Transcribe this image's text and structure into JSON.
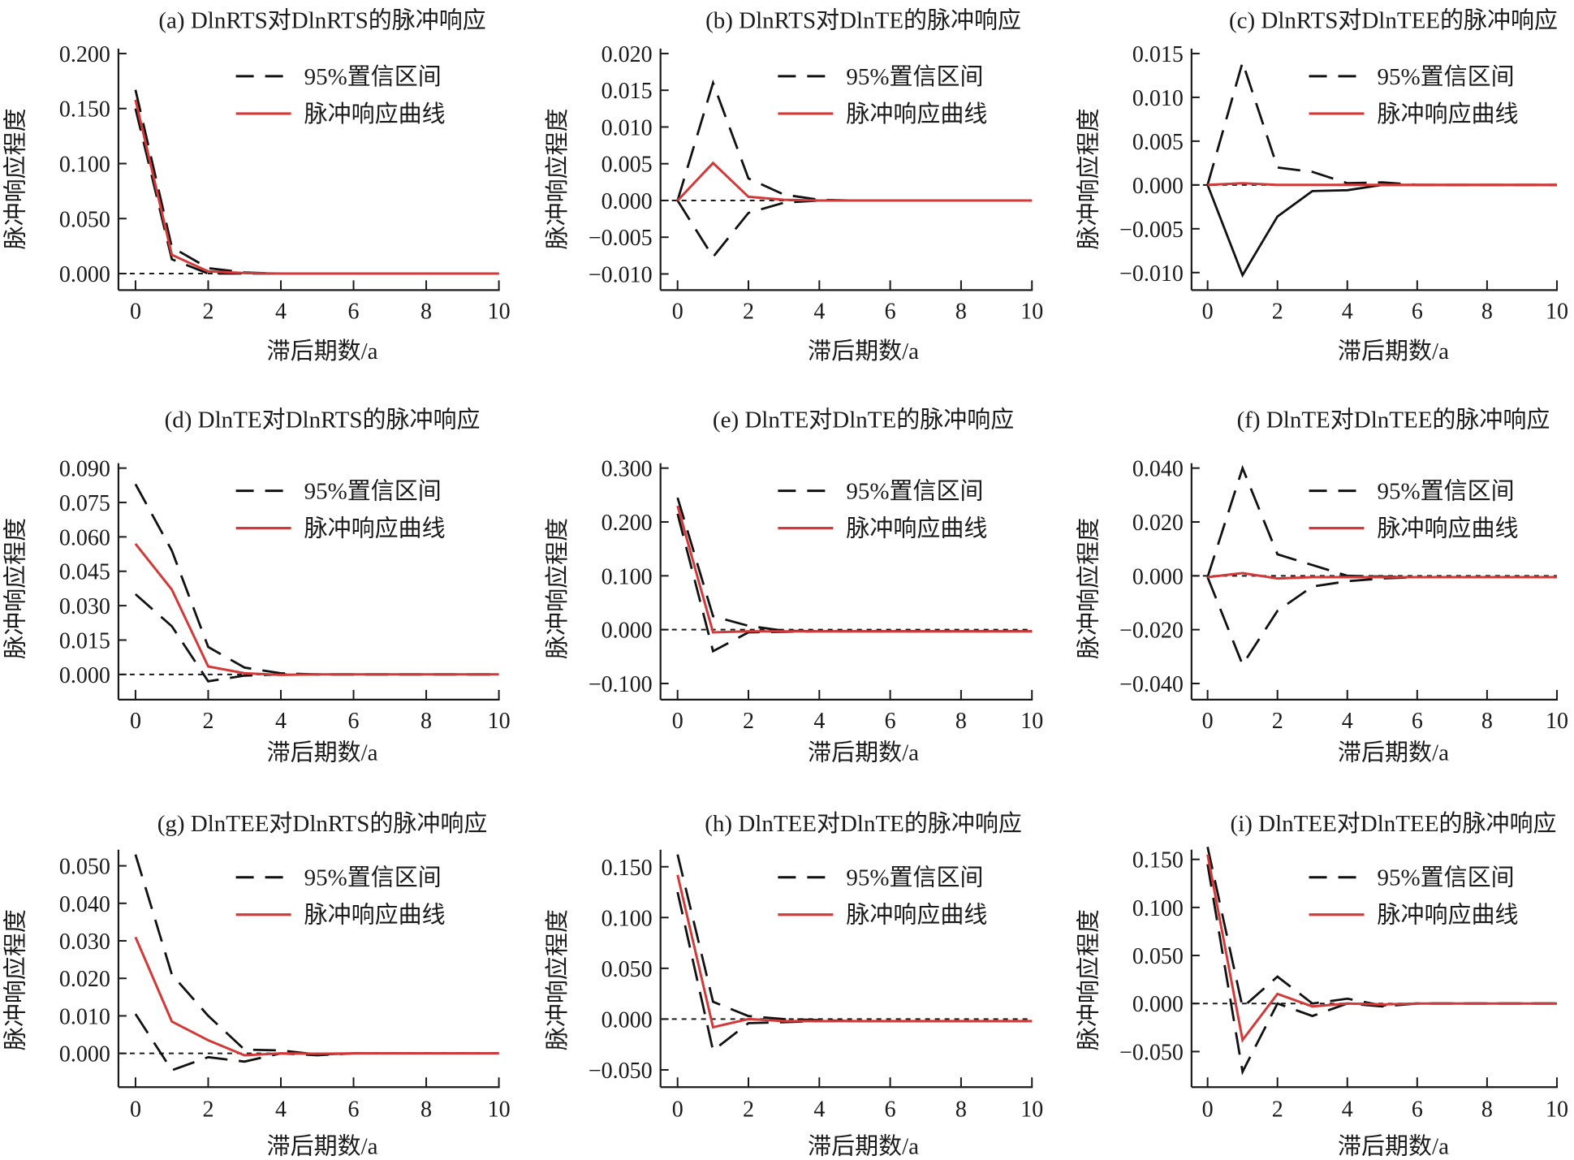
{
  "figure": {
    "legend": {
      "ci_label": "95%置信区间",
      "irf_label": "脉冲响应曲线"
    },
    "colors": {
      "irf": "#d23a3a",
      "ci": "#111111",
      "axis": "#1a1a1a",
      "zero_line": "#1a1a1a"
    }
  },
  "chart_data": [
    {
      "id": "a",
      "type": "line",
      "title": "(a) DlnRTS对DlnRTS的脉冲响应",
      "xlabel": "滞后期数/a",
      "ylabel": "脉冲响应程度",
      "x": [
        0,
        1,
        2,
        3,
        4,
        5,
        6,
        7,
        8,
        9,
        10
      ],
      "xticks": [
        0,
        2,
        4,
        6,
        8,
        10
      ],
      "xtick_labels": [
        "0",
        "2",
        "4",
        "6",
        "8",
        "10"
      ],
      "xlim": [
        -0.3,
        10
      ],
      "ylim": [
        -0.015,
        0.2
      ],
      "yticks": [
        0.0,
        0.05,
        0.1,
        0.15,
        0.2
      ],
      "ytick_labels": [
        "0.000",
        "0.050",
        "0.100",
        "0.150",
        "0.200"
      ],
      "legend_position": "top-right",
      "series": [
        {
          "name": "95%置信区间(上)",
          "style": "dashed",
          "values": [
            0.167,
            0.024,
            0.005,
            0.001,
            0,
            0,
            0,
            0,
            0,
            0,
            0
          ]
        },
        {
          "name": "95%置信区间(下)",
          "style": "dashed",
          "values": [
            0.15,
            0.013,
            0.0,
            0.0,
            0,
            0,
            0,
            0,
            0,
            0,
            0
          ]
        },
        {
          "name": "脉冲响应曲线",
          "style": "solid",
          "values": [
            0.158,
            0.017,
            0.002,
            0.0005,
            0,
            0,
            0,
            0,
            0,
            0,
            0
          ]
        }
      ]
    },
    {
      "id": "b",
      "type": "line",
      "title": "(b) DlnRTS对DlnTE的脉冲响应",
      "xlabel": "滞后期数/a",
      "ylabel": "脉冲响应程度",
      "x": [
        0,
        1,
        2,
        3,
        4,
        5,
        6,
        7,
        8,
        9,
        10
      ],
      "xticks": [
        0,
        2,
        4,
        6,
        8,
        10
      ],
      "xtick_labels": [
        "0",
        "2",
        "4",
        "6",
        "8",
        "10"
      ],
      "xlim": [
        -0.3,
        10
      ],
      "ylim": [
        -0.0122,
        0.02
      ],
      "yticks": [
        -0.01,
        -0.005,
        0.0,
        0.005,
        0.01,
        0.015,
        0.02
      ],
      "ytick_labels": [
        "−0.010",
        "−0.005",
        "0.000",
        "0.005",
        "0.010",
        "0.015",
        "0.020"
      ],
      "legend_position": "top-right",
      "series": [
        {
          "name": "95%置信区间(上)",
          "style": "dashed",
          "values": [
            0,
            0.016,
            0.003,
            0.0008,
            0.0001,
            0,
            0,
            0,
            0,
            0,
            0
          ]
        },
        {
          "name": "95%置信区间(下)",
          "style": "dashed",
          "values": [
            0,
            -0.0077,
            -0.0017,
            -0.0003,
            0,
            0,
            0,
            0,
            0,
            0,
            0
          ]
        },
        {
          "name": "脉冲响应曲线",
          "style": "solid",
          "values": [
            0,
            0.0051,
            0.0005,
            0.0001,
            0,
            0,
            0,
            0,
            0,
            0,
            0
          ]
        }
      ]
    },
    {
      "id": "c",
      "type": "line",
      "title": "(c) DlnRTS对DlnTEE的脉冲响应",
      "xlabel": "滞后期数/a",
      "ylabel": "脉冲响应程度",
      "x": [
        0,
        1,
        2,
        3,
        4,
        5,
        6,
        7,
        8,
        9,
        10
      ],
      "xticks": [
        0,
        2,
        4,
        6,
        8,
        10
      ],
      "xtick_labels": [
        "0",
        "2",
        "4",
        "6",
        "8",
        "10"
      ],
      "xlim": [
        -0.3,
        10
      ],
      "ylim": [
        -0.012,
        0.015
      ],
      "yticks": [
        -0.01,
        -0.005,
        0.0,
        0.005,
        0.01,
        0.015
      ],
      "ytick_labels": [
        "−0.010",
        "−0.005",
        "0.000",
        "0.005",
        "0.010",
        "0.015"
      ],
      "legend_position": "top-right",
      "series": [
        {
          "name": "95%置信区间(上)",
          "style": "dashed",
          "values": [
            0,
            0.014,
            0.002,
            0.0015,
            0.0002,
            0.0003,
            0,
            0,
            0,
            0,
            0
          ]
        },
        {
          "name": "95%置信区间(下)",
          "style": "solid-black",
          "values": [
            0,
            -0.0103,
            -0.0036,
            -0.0007,
            -0.0006,
            0,
            0,
            0,
            0,
            0,
            0
          ]
        },
        {
          "name": "脉冲响应曲线",
          "style": "solid",
          "values": [
            0,
            0.0002,
            0,
            0,
            0,
            0,
            0,
            0,
            0,
            0,
            0
          ]
        }
      ]
    },
    {
      "id": "d",
      "type": "line",
      "title": "(d) DlnTE对DlnRTS的脉冲响应",
      "xlabel": "滞后期数/a",
      "ylabel": "脉冲响应程度",
      "x": [
        0,
        1,
        2,
        3,
        4,
        5,
        6,
        7,
        8,
        9,
        10
      ],
      "xticks": [
        0,
        2,
        4,
        6,
        8,
        10
      ],
      "xtick_labels": [
        "0",
        "2",
        "4",
        "6",
        "8",
        "10"
      ],
      "xlim": [
        -0.3,
        10
      ],
      "ylim": [
        -0.011,
        0.09
      ],
      "yticks": [
        0.0,
        0.015,
        0.03,
        0.045,
        0.06,
        0.075,
        0.09
      ],
      "ytick_labels": [
        "0.000",
        "0.015",
        "0.030",
        "0.045",
        "0.060",
        "0.075",
        "0.090"
      ],
      "legend_position": "top-right",
      "series": [
        {
          "name": "95%置信区间(上)",
          "style": "dashed",
          "values": [
            0.083,
            0.054,
            0.012,
            0.003,
            0.0005,
            0,
            0,
            0,
            0,
            0,
            0
          ]
        },
        {
          "name": "95%置信区间(下)",
          "style": "dashed",
          "values": [
            0.035,
            0.021,
            -0.003,
            -0.0005,
            0,
            0,
            0,
            0,
            0,
            0,
            0
          ]
        },
        {
          "name": "脉冲响应曲线",
          "style": "solid",
          "values": [
            0.057,
            0.037,
            0.0035,
            0.0005,
            -0.0002,
            0,
            0,
            0,
            0,
            0,
            0
          ]
        }
      ]
    },
    {
      "id": "e",
      "type": "line",
      "title": "(e) DlnTE对DlnTE的脉冲响应",
      "xlabel": "滞后期数/a",
      "ylabel": "脉冲响应程度",
      "x": [
        0,
        1,
        2,
        3,
        4,
        5,
        6,
        7,
        8,
        9,
        10
      ],
      "xticks": [
        0,
        2,
        4,
        6,
        8,
        10
      ],
      "xtick_labels": [
        "0",
        "2",
        "4",
        "6",
        "8",
        "10"
      ],
      "xlim": [
        -0.3,
        10
      ],
      "ylim": [
        -0.13,
        0.3
      ],
      "yticks": [
        -0.1,
        0.0,
        0.1,
        0.2,
        0.3
      ],
      "ytick_labels": [
        "−0.100",
        "0.000",
        "0.100",
        "0.200",
        "0.300"
      ],
      "legend_position": "top-right",
      "series": [
        {
          "name": "95%置信区间(上)",
          "style": "dashed",
          "values": [
            0.245,
            0.025,
            0.007,
            -0.002,
            -0.003,
            -0.003,
            -0.003,
            -0.003,
            -0.003,
            -0.003,
            -0.003
          ]
        },
        {
          "name": "95%置信区间(下)",
          "style": "dashed",
          "values": [
            0.215,
            -0.04,
            -0.005,
            -0.004,
            -0.003,
            -0.003,
            -0.003,
            -0.003,
            -0.003,
            -0.003,
            -0.003
          ]
        },
        {
          "name": "脉冲响应曲线",
          "style": "solid",
          "values": [
            0.23,
            -0.005,
            -0.003,
            -0.003,
            -0.003,
            -0.003,
            -0.003,
            -0.003,
            -0.003,
            -0.003,
            -0.003
          ]
        }
      ]
    },
    {
      "id": "f",
      "type": "line",
      "title": "(f) DlnTE对DlnTEE的脉冲响应",
      "xlabel": "滞后期数/a",
      "ylabel": "脉冲响应程度",
      "x": [
        0,
        1,
        2,
        3,
        4,
        5,
        6,
        7,
        8,
        9,
        10
      ],
      "xticks": [
        0,
        2,
        4,
        6,
        8,
        10
      ],
      "xtick_labels": [
        "0",
        "2",
        "4",
        "6",
        "8",
        "10"
      ],
      "xlim": [
        -0.3,
        10
      ],
      "ylim": [
        -0.046,
        0.04
      ],
      "yticks": [
        -0.04,
        -0.02,
        0.0,
        0.02,
        0.04
      ],
      "ytick_labels": [
        "−0.040",
        "−0.020",
        "0.000",
        "0.020",
        "0.040"
      ],
      "legend_position": "top-right",
      "series": [
        {
          "name": "95%置信区间(上)",
          "style": "dashed",
          "values": [
            -0.0005,
            0.04,
            0.008,
            0.004,
            0.0,
            -0.0003,
            -0.0005,
            -0.0005,
            -0.0005,
            -0.0005,
            -0.0005
          ]
        },
        {
          "name": "95%置信区间(下)",
          "style": "dashed",
          "values": [
            -0.0005,
            -0.033,
            -0.013,
            -0.004,
            -0.002,
            -0.001,
            -0.0005,
            -0.0005,
            -0.0005,
            -0.0005,
            -0.0005
          ]
        },
        {
          "name": "脉冲响应曲线",
          "style": "solid",
          "values": [
            -0.0005,
            0.001,
            -0.001,
            -0.0005,
            -0.0005,
            -0.0005,
            -0.0005,
            -0.0005,
            -0.0005,
            -0.0005,
            -0.0005
          ]
        }
      ]
    },
    {
      "id": "g",
      "type": "line",
      "title": "(g) DlnTEE对DlnRTS的脉冲响应",
      "xlabel": "滞后期数/a",
      "ylabel": "脉冲响应程度",
      "x": [
        0,
        1,
        2,
        3,
        4,
        5,
        6,
        7,
        8,
        9,
        10
      ],
      "xticks": [
        0,
        2,
        4,
        6,
        8,
        10
      ],
      "xtick_labels": [
        "0",
        "2",
        "4",
        "6",
        "8",
        "10"
      ],
      "xlim": [
        -0.3,
        10
      ],
      "ylim": [
        -0.009,
        0.053
      ],
      "yticks": [
        0.0,
        0.01,
        0.02,
        0.03,
        0.04,
        0.05
      ],
      "ytick_labels": [
        "0.000",
        "0.010",
        "0.020",
        "0.030",
        "0.040",
        "0.050"
      ],
      "legend_position": "top-right",
      "series": [
        {
          "name": "95%置信区间(上)",
          "style": "dashed",
          "values": [
            0.053,
            0.021,
            0.01,
            0.001,
            0.0008,
            -0.0003,
            0,
            0,
            0,
            0,
            0
          ]
        },
        {
          "name": "95%置信区间(下)",
          "style": "dashed",
          "values": [
            0.0105,
            -0.0045,
            -0.001,
            -0.0022,
            0,
            -0.0005,
            0,
            0,
            0,
            0,
            0
          ]
        },
        {
          "name": "脉冲响应曲线",
          "style": "solid",
          "values": [
            0.031,
            0.0085,
            0.0035,
            -0.0005,
            0,
            -0.0001,
            0,
            0,
            0,
            0,
            0
          ]
        }
      ]
    },
    {
      "id": "h",
      "type": "line",
      "title": "(h) DlnTEE对DlnTE的脉冲响应",
      "xlabel": "滞后期数/a",
      "ylabel": "脉冲响应程度",
      "x": [
        0,
        1,
        2,
        3,
        4,
        5,
        6,
        7,
        8,
        9,
        10
      ],
      "xticks": [
        0,
        2,
        4,
        6,
        8,
        10
      ],
      "xtick_labels": [
        "0",
        "2",
        "4",
        "6",
        "8",
        "10"
      ],
      "xlim": [
        -0.3,
        10
      ],
      "ylim": [
        -0.067,
        0.162
      ],
      "yticks": [
        -0.05,
        0.0,
        0.05,
        0.1,
        0.15
      ],
      "ytick_labels": [
        "−0.050",
        "0.000",
        "0.050",
        "0.100",
        "0.150"
      ],
      "legend_position": "top-right",
      "series": [
        {
          "name": "95%置信区间(上)",
          "style": "dashed",
          "values": [
            0.162,
            0.017,
            0.003,
            0.0,
            -0.001,
            -0.002,
            -0.002,
            -0.002,
            -0.002,
            -0.002,
            -0.002
          ]
        },
        {
          "name": "95%置信区间(下)",
          "style": "dashed",
          "values": [
            0.125,
            -0.031,
            -0.004,
            -0.003,
            -0.002,
            -0.002,
            -0.002,
            -0.002,
            -0.002,
            -0.002,
            -0.002
          ]
        },
        {
          "name": "脉冲响应曲线",
          "style": "solid",
          "values": [
            0.142,
            -0.008,
            0.0,
            -0.002,
            -0.002,
            -0.002,
            -0.002,
            -0.002,
            -0.002,
            -0.002,
            -0.002
          ]
        }
      ]
    },
    {
      "id": "i",
      "type": "line",
      "title": "(i) DlnTEE对DlnTEE的脉冲响应",
      "xlabel": "滞后期数/a",
      "ylabel": "脉冲响应程度",
      "x": [
        0,
        1,
        2,
        3,
        4,
        5,
        6,
        7,
        8,
        9,
        10
      ],
      "xticks": [
        0,
        2,
        4,
        6,
        8,
        10
      ],
      "xtick_labels": [
        "0",
        "2",
        "4",
        "6",
        "8",
        "10"
      ],
      "xlim": [
        -0.3,
        10
      ],
      "ylim": [
        -0.087,
        0.155
      ],
      "yticks": [
        -0.05,
        0.0,
        0.05,
        0.1,
        0.15
      ],
      "ytick_labels": [
        "−0.050",
        "0.000",
        "0.050",
        "0.100",
        "0.150"
      ],
      "legend_position": "top-right",
      "series": [
        {
          "name": "95%置信区间(上)",
          "style": "dashed",
          "values": [
            0.163,
            -0.004,
            0.028,
            0.0,
            0.005,
            -0.002,
            0,
            0,
            0,
            0,
            0
          ]
        },
        {
          "name": "95%置信区间(下)",
          "style": "dashed",
          "values": [
            0.145,
            -0.071,
            0.0,
            -0.013,
            0.0,
            -0.003,
            0,
            0,
            0,
            0,
            0
          ]
        },
        {
          "name": "脉冲响应曲线",
          "style": "solid",
          "values": [
            0.155,
            -0.038,
            0.01,
            -0.003,
            0.0,
            -0.001,
            0,
            0,
            0,
            0,
            0
          ]
        }
      ]
    }
  ]
}
